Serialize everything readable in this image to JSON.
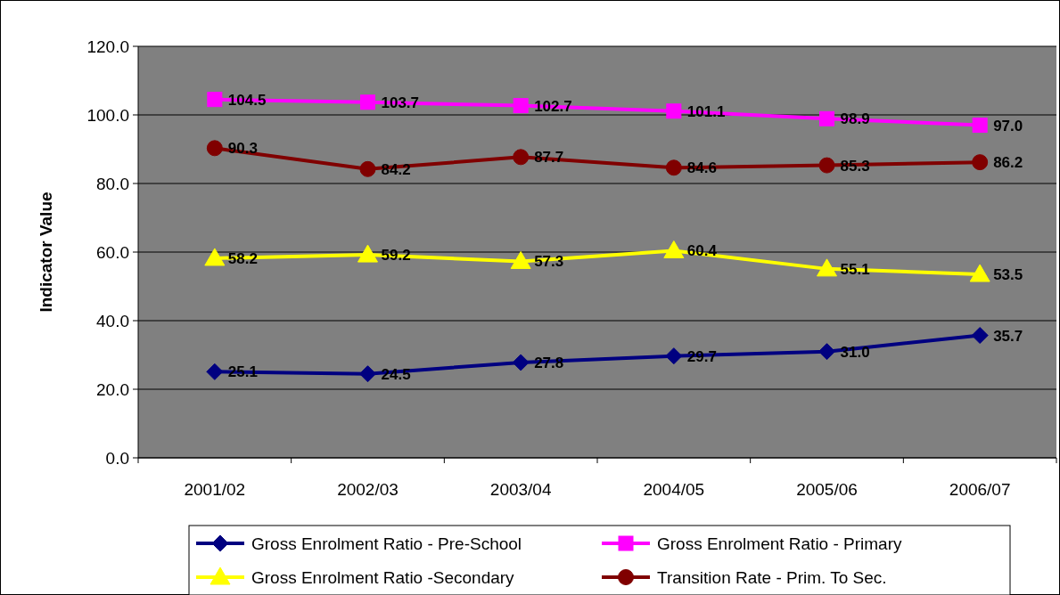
{
  "chart_data": {
    "type": "line",
    "ylabel": "Indicator Value",
    "categories": [
      "2001/02",
      "2002/03",
      "2003/04",
      "2004/05",
      "2005/06",
      "2006/07"
    ],
    "series": [
      {
        "name": "Gross Enrolment Ratio - Pre-School",
        "color": "#000080",
        "marker": "diamond",
        "values": [
          25.1,
          24.5,
          27.8,
          29.7,
          31.0,
          35.7
        ],
        "value_labels": [
          "25.1",
          "24.5",
          "27.8",
          "29.7",
          "31.0",
          "35.7"
        ]
      },
      {
        "name": "Gross Enrolment Ratio - Primary",
        "color": "#ff00ff",
        "marker": "square",
        "values": [
          104.5,
          103.7,
          102.7,
          101.1,
          98.9,
          97.0
        ],
        "value_labels": [
          "104.5",
          "103.7",
          "102.7",
          "101.1",
          "98.9",
          "97.0"
        ]
      },
      {
        "name": "Gross Enrolment Ratio -Secondary",
        "color": "#ffff00",
        "marker": "triangle",
        "values": [
          58.2,
          59.2,
          57.3,
          60.4,
          55.1,
          53.5
        ],
        "value_labels": [
          "58.2",
          "59.2",
          "57.3",
          "60.4",
          "55.1",
          "53.5"
        ]
      },
      {
        "name": "Transition Rate - Prim. To Sec.",
        "color": "#800000",
        "marker": "circle",
        "values": [
          90.3,
          84.2,
          87.7,
          84.6,
          85.3,
          86.2
        ],
        "value_labels": [
          "90.3",
          "84.2",
          "87.7",
          "84.6",
          "85.3",
          "86.2"
        ]
      }
    ],
    "ylim": [
      0,
      120
    ],
    "yticks": [
      {
        "value": 0,
        "label": "0.0"
      },
      {
        "value": 20,
        "label": "20.0"
      },
      {
        "value": 40,
        "label": "40.0"
      },
      {
        "value": 60,
        "label": "60.0"
      },
      {
        "value": 80,
        "label": "80.0"
      },
      {
        "value": 100,
        "label": "100.0"
      },
      {
        "value": 120,
        "label": "120.0"
      }
    ],
    "grid": "y",
    "legend": "bottom",
    "line_style": "solid"
  }
}
